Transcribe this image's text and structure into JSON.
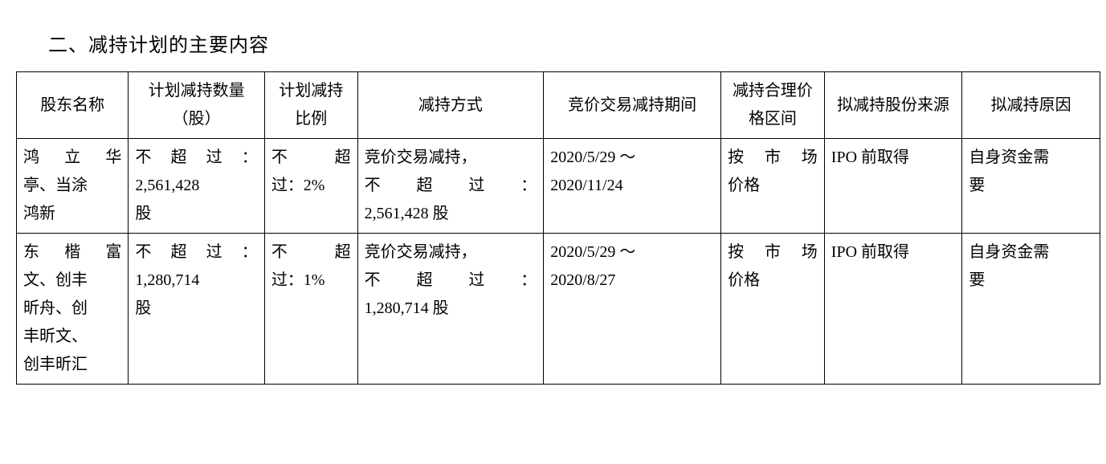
{
  "heading": "二、减持计划的主要内容",
  "table": {
    "columns": [
      "股东名称",
      "计划减持数量（股）",
      "计划减持比例",
      "减持方式",
      "竞价交易减持期间",
      "减持合理价格区间",
      "拟减持股份来源",
      "拟减持原因"
    ],
    "rows": [
      {
        "c0_l1": "鸿立华",
        "c0_l2": "亭、当涂",
        "c0_l3": "鸿新",
        "c1_l1": "不超过：",
        "c1_l2": "2,561,428",
        "c1_l3": "股",
        "c2_l1": "不超",
        "c2_l2": "过：2%",
        "c3_l1": "竞价交易减持，",
        "c3_l2": "不超过：",
        "c3_l3": "2,561,428 股",
        "c4_l1": "2020/5/29 ～",
        "c4_l2": "2020/11/24",
        "c5_l1": "按市场",
        "c5_l2": "价格",
        "c6": "IPO 前取得",
        "c7_l1": "自身资金需",
        "c7_l2": "要"
      },
      {
        "c0_l1": "东楷富",
        "c0_l2": "文、创丰",
        "c0_l3": "昕舟、创",
        "c0_l4": "丰昕文、",
        "c0_l5": "创丰昕汇",
        "c1_l1": "不超过：",
        "c1_l2": "1,280,714",
        "c1_l3": "股",
        "c2_l1": "不超",
        "c2_l2": "过：1%",
        "c3_l1": "竞价交易减持，",
        "c3_l2": "不超过：",
        "c3_l3": "1,280,714 股",
        "c4_l1": "2020/5/29 ～",
        "c4_l2": "2020/8/27",
        "c5_l1": "按市场",
        "c5_l2": "价格",
        "c6": "IPO 前取得",
        "c7_l1": "自身资金需",
        "c7_l2": "要"
      }
    ]
  }
}
